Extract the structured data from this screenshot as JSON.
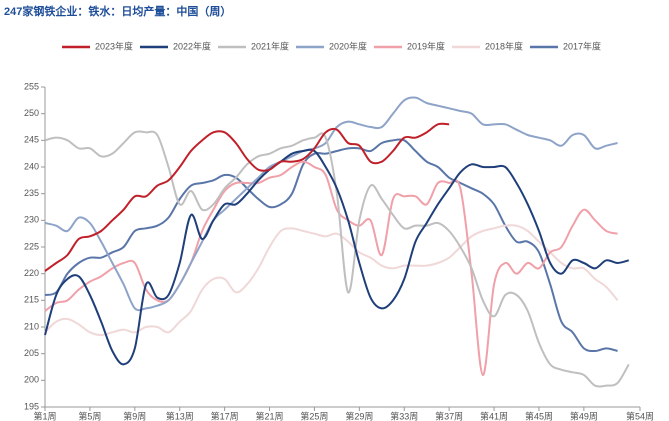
{
  "chart_data": {
    "type": "line",
    "title": "247家钢铁企业：铁水：日均产量：中国（周）",
    "categories": [
      "第1周",
      null,
      null,
      null,
      "第5周",
      null,
      null,
      null,
      "第9周",
      null,
      null,
      null,
      "第13周",
      null,
      null,
      null,
      "第17周",
      null,
      null,
      null,
      "第21周",
      null,
      null,
      null,
      "第25周",
      null,
      null,
      null,
      "第29周",
      null,
      null,
      null,
      "第33周",
      null,
      null,
      null,
      "第37周",
      null,
      null,
      null,
      "第41周",
      null,
      null,
      null,
      "第45周",
      null,
      null,
      null,
      "第49周",
      null,
      null,
      null,
      null,
      "第54周"
    ],
    "ylim": [
      195,
      255
    ],
    "yticks": [
      195,
      200,
      205,
      210,
      215,
      220,
      225,
      230,
      235,
      240,
      245,
      250,
      255
    ],
    "legend": "top",
    "series": [
      {
        "name": "2023年度",
        "color": "#c0202a",
        "values": [
          220.5,
          222,
          223.5,
          226.5,
          227,
          228,
          230,
          232,
          234.5,
          234.5,
          236.5,
          237.5,
          240,
          243,
          245,
          246.5,
          246.5,
          244.5,
          241.5,
          239.5,
          239.5,
          241,
          241,
          241.5,
          243.5,
          246.5,
          247,
          244.5,
          244,
          241,
          241,
          243,
          245.5,
          245.5,
          246.5,
          248,
          248,
          null,
          null,
          null,
          null,
          null,
          null,
          null,
          null,
          null,
          null,
          null,
          null,
          null,
          null,
          null,
          null,
          null
        ]
      },
      {
        "name": "2022年度",
        "color": "#1f3f7a",
        "values": [
          208.5,
          216,
          219,
          219.5,
          216,
          211,
          205.5,
          203,
          206,
          218,
          215.5,
          216,
          222,
          231,
          226.5,
          230,
          233,
          233,
          235,
          237.5,
          239.5,
          241,
          242.5,
          243,
          243,
          240,
          236,
          230,
          222,
          215.5,
          213.5,
          215,
          219,
          226,
          229.5,
          233,
          236,
          239,
          240.5,
          240,
          240,
          240,
          237,
          233,
          228,
          222,
          220,
          222.5,
          222,
          221,
          222.5,
          222,
          222.5,
          null
        ]
      },
      {
        "name": "2021年度",
        "color": "#bfbfbf",
        "values": [
          245,
          245.5,
          245,
          243.5,
          243.5,
          242,
          242.5,
          244.5,
          246.5,
          246.5,
          246,
          240,
          233,
          235.5,
          232,
          233,
          236,
          238,
          240.5,
          242,
          242.5,
          243.5,
          244,
          245,
          245.5,
          245.5,
          235,
          216.5,
          230,
          236.5,
          234,
          231,
          228.5,
          229,
          229,
          229.5,
          228,
          225,
          221,
          215,
          212,
          216,
          216,
          213,
          207,
          203,
          202,
          201.5,
          201,
          199,
          199,
          199.5,
          203,
          null
        ]
      },
      {
        "name": "2020年度",
        "color": "#8ea3c8",
        "values": [
          229.5,
          229,
          228,
          230.5,
          229.5,
          226,
          222,
          218,
          213.5,
          213.5,
          214,
          215,
          218,
          222,
          226,
          230,
          232,
          234,
          236,
          238,
          240,
          241,
          242,
          243,
          243.5,
          244.5,
          247.5,
          248.5,
          248,
          247.5,
          247.5,
          250,
          252.5,
          253,
          252,
          251.5,
          251,
          250.5,
          250,
          248,
          248,
          248,
          247,
          246,
          245.5,
          245,
          244,
          246,
          246,
          243.5,
          244,
          244.5,
          null,
          null
        ]
      },
      {
        "name": "2019年度",
        "color": "#f0a0a8",
        "values": [
          213,
          214.5,
          215,
          217,
          218.5,
          219.5,
          221,
          222,
          222,
          217,
          215,
          215,
          218,
          222,
          228,
          232,
          235.5,
          237,
          237,
          237,
          238,
          238.5,
          240,
          241,
          240,
          238.5,
          232,
          230,
          229,
          230,
          223.5,
          234,
          234.5,
          234.5,
          233,
          237,
          237,
          236,
          220,
          201,
          218,
          222,
          220,
          222,
          221,
          224,
          225,
          229,
          232,
          230,
          228,
          227.5,
          null,
          null
        ]
      },
      {
        "name": "2018年度",
        "color": "#f0d8d8",
        "values": [
          209,
          211,
          211.5,
          210.5,
          209,
          208.5,
          209,
          209.5,
          209,
          210,
          210,
          209,
          211,
          213,
          217,
          219,
          219,
          216.5,
          218,
          221,
          225,
          228,
          228.5,
          228,
          227.5,
          227,
          227.5,
          226,
          224,
          223,
          221.5,
          221,
          221.5,
          221.5,
          221.5,
          222,
          223,
          225,
          227,
          228,
          228.5,
          229,
          229,
          228,
          226,
          224,
          222,
          221,
          221,
          219,
          217.5,
          215,
          null,
          null
        ]
      },
      {
        "name": "2017年度",
        "color": "#5a76a8",
        "values": [
          216,
          216.5,
          220,
          222,
          223,
          223,
          224,
          225,
          228,
          228.5,
          229,
          230.5,
          234,
          236.5,
          237,
          237.5,
          238.5,
          238,
          236,
          234,
          232.5,
          233,
          235,
          240.5,
          242.5,
          242.5,
          243,
          243.5,
          243.5,
          243,
          244.5,
          245,
          245,
          243,
          241,
          240,
          238,
          237,
          236,
          235,
          233,
          229,
          226,
          226,
          224,
          218,
          211,
          209,
          206,
          205.5,
          206,
          205.5,
          null,
          null
        ]
      }
    ]
  }
}
